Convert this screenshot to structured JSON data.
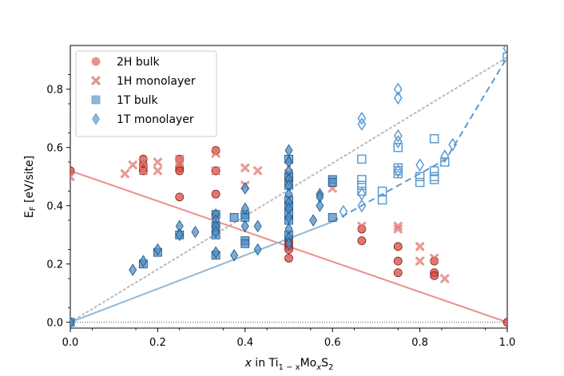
{
  "chart_data": {
    "type": "scatter",
    "xlabel_parts": {
      "x": "x",
      "in": " in Ti",
      "sub1": "1 − x",
      "mo": "Mo",
      "sub2": "x",
      "s": "S",
      "sub3": "2"
    },
    "ylabel_parts": {
      "e": "E",
      "sub": "F",
      "unit": " [eV/site]"
    },
    "xlim": [
      0,
      1
    ],
    "ylim": [
      -0.02,
      0.95
    ],
    "xticks": [
      0.0,
      0.2,
      0.4,
      0.6,
      0.8,
      1.0
    ],
    "xtick_labels": [
      "0.0",
      "0.2",
      "0.4",
      "0.6",
      "0.8",
      "1.0"
    ],
    "yticks": [
      0.0,
      0.2,
      0.4,
      0.6,
      0.8
    ],
    "ytick_labels": [
      "0.0",
      "0.2",
      "0.4",
      "0.6",
      "0.8"
    ],
    "legend_position": "top-left",
    "colors": {
      "red_fill": "#e8908c",
      "red_dark": "#c0392b",
      "red_line": "#e8908c",
      "blue_fill": "#8fb8d8",
      "blue_dark": "#2c72b0",
      "blue_line": "#8fb8d8",
      "blue_dashed": "#5b9bd1",
      "gray_dotted": "#b8b8b8"
    },
    "legend": [
      {
        "label": "2H bulk",
        "marker": "circle"
      },
      {
        "label": "1H monolayer",
        "marker": "x"
      },
      {
        "label": "1T bulk",
        "marker": "square"
      },
      {
        "label": "1T monolayer",
        "marker": "diamond"
      }
    ],
    "lines": {
      "red_solid": [
        [
          0,
          0.52
        ],
        [
          1,
          0.0
        ]
      ],
      "blue_solid": [
        [
          0,
          0.0
        ],
        [
          0.6,
          0.345
        ]
      ],
      "blue_dashed": [
        [
          0.6,
          0.345
        ],
        [
          0.86,
          0.56
        ],
        [
          1.0,
          0.91
        ]
      ],
      "gray_dotted": [
        [
          0,
          0.0
        ],
        [
          1.0,
          0.91
        ]
      ],
      "zero_dotted": [
        [
          0,
          0.0
        ],
        [
          1.0,
          0.0
        ]
      ]
    },
    "series": [
      {
        "name": "2H bulk",
        "marker": "circle",
        "style": "filled-red",
        "points": [
          [
            0.0,
            0.52
          ],
          [
            0.167,
            0.56
          ],
          [
            0.167,
            0.54
          ],
          [
            0.167,
            0.53
          ],
          [
            0.167,
            0.52
          ],
          [
            0.25,
            0.56
          ],
          [
            0.25,
            0.53
          ],
          [
            0.25,
            0.52
          ],
          [
            0.25,
            0.43
          ],
          [
            0.333,
            0.59
          ],
          [
            0.333,
            0.52
          ],
          [
            0.333,
            0.44
          ],
          [
            0.5,
            0.28
          ],
          [
            0.5,
            0.27
          ],
          [
            0.5,
            0.26
          ],
          [
            0.5,
            0.25
          ],
          [
            0.5,
            0.22
          ],
          [
            0.667,
            0.32
          ],
          [
            0.667,
            0.28
          ],
          [
            0.75,
            0.26
          ],
          [
            0.75,
            0.21
          ],
          [
            0.75,
            0.17
          ],
          [
            0.833,
            0.21
          ],
          [
            0.833,
            0.17
          ],
          [
            0.833,
            0.16
          ],
          [
            1.0,
            0.0
          ]
        ]
      },
      {
        "name": "1H monolayer",
        "marker": "x",
        "style": "red",
        "points": [
          [
            0.0,
            0.5
          ],
          [
            0.125,
            0.51
          ],
          [
            0.143,
            0.54
          ],
          [
            0.167,
            0.55
          ],
          [
            0.167,
            0.52
          ],
          [
            0.2,
            0.55
          ],
          [
            0.2,
            0.52
          ],
          [
            0.25,
            0.56
          ],
          [
            0.25,
            0.55
          ],
          [
            0.333,
            0.58
          ],
          [
            0.333,
            0.52
          ],
          [
            0.4,
            0.53
          ],
          [
            0.4,
            0.47
          ],
          [
            0.429,
            0.52
          ],
          [
            0.5,
            0.51
          ],
          [
            0.5,
            0.5
          ],
          [
            0.6,
            0.46
          ],
          [
            0.667,
            0.33
          ],
          [
            0.75,
            0.33
          ],
          [
            0.75,
            0.32
          ],
          [
            0.8,
            0.26
          ],
          [
            0.8,
            0.21
          ],
          [
            0.833,
            0.22
          ],
          [
            0.857,
            0.15
          ]
        ]
      },
      {
        "name": "1T bulk",
        "marker": "square",
        "style": "filled-blue",
        "points": [
          [
            0.0,
            0.0
          ],
          [
            0.167,
            0.2
          ],
          [
            0.2,
            0.24
          ],
          [
            0.25,
            0.3
          ],
          [
            0.333,
            0.37
          ],
          [
            0.333,
            0.33
          ],
          [
            0.333,
            0.3
          ],
          [
            0.333,
            0.23
          ],
          [
            0.375,
            0.36
          ],
          [
            0.4,
            0.37
          ],
          [
            0.4,
            0.36
          ],
          [
            0.4,
            0.28
          ],
          [
            0.4,
            0.27
          ],
          [
            0.5,
            0.56
          ],
          [
            0.5,
            0.5
          ],
          [
            0.5,
            0.47
          ],
          [
            0.5,
            0.42
          ],
          [
            0.5,
            0.4
          ],
          [
            0.5,
            0.37
          ],
          [
            0.5,
            0.35
          ],
          [
            0.5,
            0.3
          ],
          [
            0.6,
            0.49
          ],
          [
            0.6,
            0.48
          ],
          [
            0.6,
            0.36
          ]
        ]
      },
      {
        "name": "1T bulk open",
        "marker": "square",
        "style": "open-blue",
        "points": [
          [
            0.667,
            0.56
          ],
          [
            0.667,
            0.49
          ],
          [
            0.667,
            0.47
          ],
          [
            0.667,
            0.45
          ],
          [
            0.714,
            0.45
          ],
          [
            0.714,
            0.42
          ],
          [
            0.75,
            0.6
          ],
          [
            0.75,
            0.53
          ],
          [
            0.75,
            0.52
          ],
          [
            0.75,
            0.51
          ],
          [
            0.8,
            0.5
          ],
          [
            0.8,
            0.48
          ],
          [
            0.833,
            0.63
          ],
          [
            0.833,
            0.52
          ],
          [
            0.833,
            0.5
          ],
          [
            0.833,
            0.49
          ],
          [
            0.857,
            0.55
          ],
          [
            1.0,
            0.91
          ]
        ]
      },
      {
        "name": "1T monolayer",
        "marker": "diamond",
        "style": "filled-blue",
        "points": [
          [
            0.0,
            0.0
          ],
          [
            0.143,
            0.18
          ],
          [
            0.167,
            0.21
          ],
          [
            0.2,
            0.25
          ],
          [
            0.25,
            0.33
          ],
          [
            0.25,
            0.3
          ],
          [
            0.286,
            0.31
          ],
          [
            0.333,
            0.37
          ],
          [
            0.333,
            0.35
          ],
          [
            0.333,
            0.33
          ],
          [
            0.333,
            0.31
          ],
          [
            0.333,
            0.24
          ],
          [
            0.375,
            0.23
          ],
          [
            0.4,
            0.46
          ],
          [
            0.4,
            0.39
          ],
          [
            0.4,
            0.33
          ],
          [
            0.429,
            0.33
          ],
          [
            0.429,
            0.25
          ],
          [
            0.5,
            0.59
          ],
          [
            0.5,
            0.55
          ],
          [
            0.5,
            0.52
          ],
          [
            0.5,
            0.49
          ],
          [
            0.5,
            0.47
          ],
          [
            0.5,
            0.44
          ],
          [
            0.5,
            0.41
          ],
          [
            0.5,
            0.39
          ],
          [
            0.5,
            0.36
          ],
          [
            0.5,
            0.32
          ],
          [
            0.5,
            0.29
          ],
          [
            0.5,
            0.27
          ],
          [
            0.556,
            0.35
          ],
          [
            0.571,
            0.44
          ],
          [
            0.571,
            0.43
          ],
          [
            0.571,
            0.4
          ]
        ]
      },
      {
        "name": "1T monolayer open",
        "marker": "diamond",
        "style": "open-blue",
        "points": [
          [
            0.625,
            0.38
          ],
          [
            0.667,
            0.7
          ],
          [
            0.667,
            0.68
          ],
          [
            0.667,
            0.44
          ],
          [
            0.667,
            0.4
          ],
          [
            0.75,
            0.8
          ],
          [
            0.75,
            0.77
          ],
          [
            0.75,
            0.64
          ],
          [
            0.75,
            0.62
          ],
          [
            0.75,
            0.52
          ],
          [
            0.8,
            0.54
          ],
          [
            0.857,
            0.57
          ],
          [
            0.875,
            0.61
          ],
          [
            1.0,
            0.94
          ]
        ]
      }
    ]
  }
}
